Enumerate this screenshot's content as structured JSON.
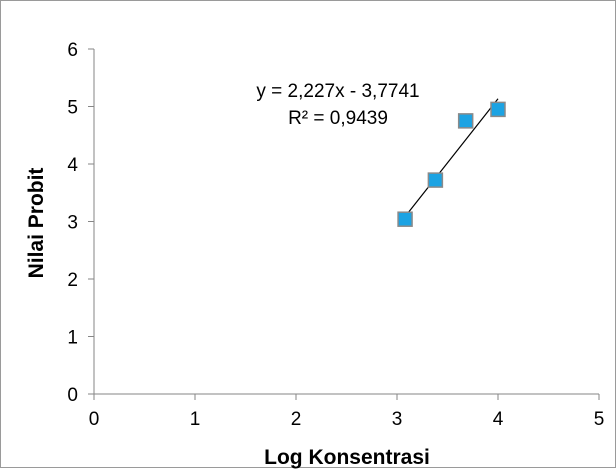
{
  "chart_data": {
    "type": "scatter",
    "title": "",
    "xlabel": "Log Konsentrasi",
    "ylabel": "Nilai Probit",
    "xlim": [
      0,
      5
    ],
    "ylim": [
      0,
      6
    ],
    "x_ticks": [
      "0",
      "1",
      "2",
      "3",
      "4",
      "5"
    ],
    "y_ticks": [
      "0",
      "1",
      "2",
      "3",
      "4",
      "5",
      "6"
    ],
    "grid": false,
    "legend": "none",
    "series": [
      {
        "x": [
          3.08,
          3.38,
          3.68,
          4.0
        ],
        "y": [
          3.04,
          3.72,
          4.75,
          4.95
        ],
        "marker": "square",
        "color": "#1ca3e3",
        "edge_color": "#8a8a8a"
      }
    ],
    "trendline": {
      "type": "linear",
      "slope": 2.227,
      "intercept": -3.7741,
      "x_range": [
        3.08,
        4.0
      ],
      "color": "#000000"
    },
    "annotations": {
      "equation": "y = 2,227x - 3,7741",
      "r_squared": "R² = 0,9439"
    }
  }
}
